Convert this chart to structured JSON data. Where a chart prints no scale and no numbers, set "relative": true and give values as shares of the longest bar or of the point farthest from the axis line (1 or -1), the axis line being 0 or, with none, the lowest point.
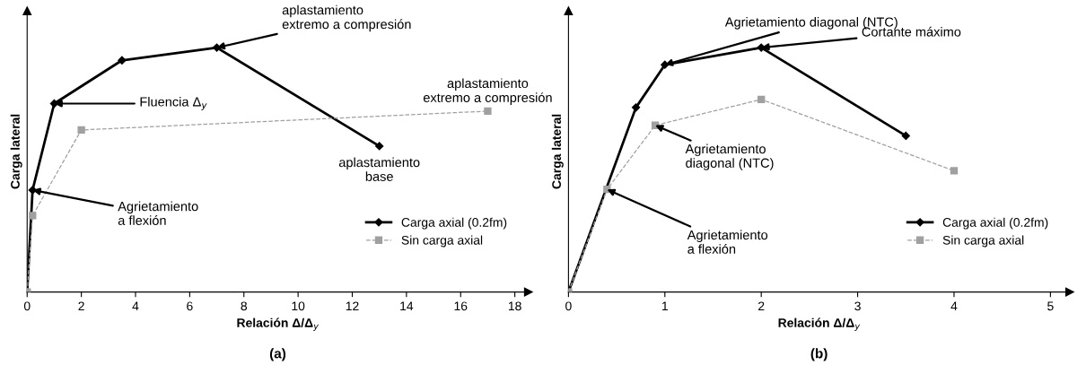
{
  "chart_data": [
    {
      "type": "line",
      "relative": true,
      "xlabel": "Relación Δ/Δ$_{y}$",
      "ylabel": "Carga lateral",
      "xlim": [
        0,
        18.5
      ],
      "xticks": [
        0,
        2,
        4,
        6,
        8,
        10,
        12,
        14,
        16,
        18
      ],
      "legend": "bottom right",
      "grid": false,
      "tick_labels": "x",
      "series": [
        {
          "name": "Carga axial (0.2fm)",
          "color": "#000000",
          "marker": "diamond",
          "line_style": "solid",
          "x": [
            0,
            0.2,
            1,
            3.5,
            7,
            13
          ],
          "values": [
            0,
            0.417,
            0.771,
            0.948,
            1,
            0.597
          ]
        },
        {
          "name": "Sin carga axial",
          "color": "#a0a0a0",
          "marker": "square",
          "line_style": "dashed",
          "x": [
            0,
            0.2,
            2,
            17
          ],
          "values": [
            0,
            0.3125,
            0.663,
            0.74
          ]
        }
      ],
      "annotations": [
        {
          "text": "aplastamiento\nextremo a compresión",
          "x": 7,
          "y": 1
        },
        {
          "text": "Fluencia Δ$_{y}$",
          "x": 1,
          "y": 0.771
        },
        {
          "text": "aplastamiento\nextremo a compresión",
          "x": 17,
          "y": 0.74
        },
        {
          "text": "aplastamiento\nbase",
          "x": 13,
          "y": 0.597
        },
        {
          "text": "Agrietamiento\na flexión",
          "x": 0.2,
          "y": 0.417
        },
        "(a)"
      ]
    },
    {
      "type": "line",
      "relative": true,
      "xlabel": "Relación Δ/Δ$_{y}$",
      "ylabel": "Carga lateral",
      "xlim": [
        0,
        5.2
      ],
      "xticks": [
        0,
        1,
        2,
        3,
        4,
        5
      ],
      "legend": "bottom right",
      "grid": false,
      "tick_labels": "x",
      "series": [
        {
          "name": "Carga axial (0.2fm)",
          "color": "#000000",
          "marker": "diamond",
          "line_style": "solid",
          "x": [
            0,
            0.7,
            1,
            2,
            3.5
          ],
          "values": [
            0,
            0.755,
            0.93,
            1,
            0.639
          ]
        },
        {
          "name": "Sin carga axial",
          "color": "#a0a0a0",
          "marker": "square",
          "line_style": "dashed",
          "x": [
            0,
            0.4,
            0.9,
            2,
            4
          ],
          "values": [
            0,
            0.42,
            0.682,
            0.788,
            0.496
          ]
        }
      ],
      "annotations": [
        {
          "text": "Agrietamiento diagonal (NTC)",
          "x": 1,
          "y": 0.93
        },
        {
          "text": "Cortante máximo",
          "x": 2,
          "y": 1
        },
        {
          "text": "Agrietamiento\ndiagonal (NTC)",
          "x": 0.9,
          "y": 0.682
        },
        {
          "text": "Agrietamiento\na flexión",
          "x": 0.4,
          "y": 0.42
        },
        "(b)"
      ]
    }
  ]
}
